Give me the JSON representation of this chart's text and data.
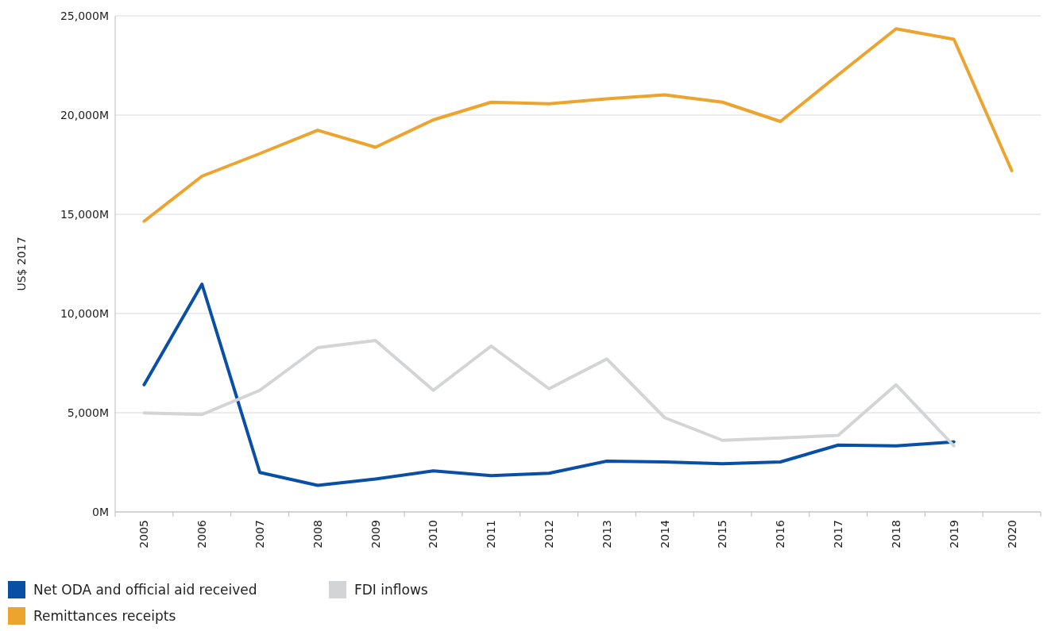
{
  "chart_data": {
    "type": "line",
    "ylabel": "US$ 2017",
    "categories": [
      "2005",
      "2006",
      "2007",
      "2008",
      "2009",
      "2010",
      "2011",
      "2012",
      "2013",
      "2014",
      "2015",
      "2016",
      "2017",
      "2018",
      "2019",
      "2020"
    ],
    "ylim": [
      0,
      25000
    ],
    "yticks": [
      {
        "value": 0,
        "label": "0M"
      },
      {
        "value": 5000,
        "label": "5,000M"
      },
      {
        "value": 10000,
        "label": "10,000M"
      },
      {
        "value": 15000,
        "label": "15,000M"
      },
      {
        "value": 20000,
        "label": "20,000M"
      },
      {
        "value": 25000,
        "label": "25,000M"
      }
    ],
    "grid": "y",
    "legend": "bottom",
    "marker": "none",
    "line_style": "solid",
    "series": [
      {
        "name": "Net ODA and official aid received",
        "color": "#0a4fa6",
        "values": [
          6410,
          11480,
          1990,
          1340,
          1660,
          2070,
          1830,
          1950,
          2560,
          2520,
          2430,
          2520,
          3370,
          3330,
          3530,
          null
        ]
      },
      {
        "name": "FDI inflows",
        "color": "#d3d4d6",
        "values": [
          4990,
          4910,
          6130,
          8280,
          8640,
          6130,
          8360,
          6210,
          7710,
          4750,
          3610,
          3730,
          3860,
          6410,
          3330,
          null
        ]
      },
      {
        "name": "Remittances receipts",
        "color": "#eca42f",
        "values": [
          14650,
          16920,
          18060,
          19235,
          18380,
          19760,
          20650,
          20570,
          20820,
          21020,
          20650,
          19680,
          22030,
          24350,
          23820,
          17200
        ]
      }
    ]
  }
}
